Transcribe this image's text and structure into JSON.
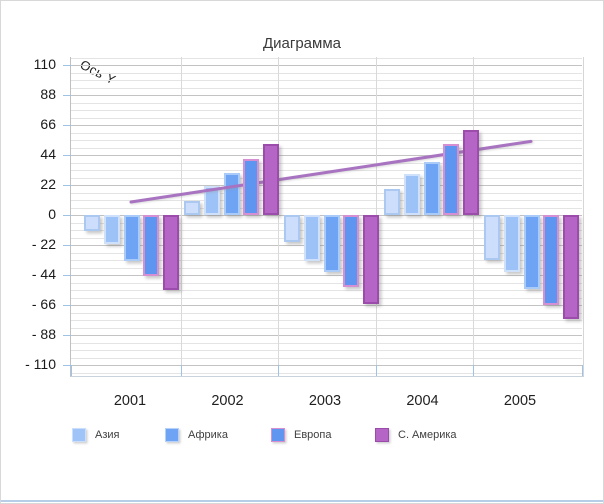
{
  "chart_data": {
    "type": "bar",
    "title": "Диаграмма",
    "y_axis_title": "Ось Y",
    "categories": [
      "2001",
      "2002",
      "2003",
      "2004",
      "2005"
    ],
    "y_major_unit": 22,
    "y_minor_unit": 5.5,
    "ylim": [
      -110,
      110
    ],
    "y_major_ticks": [
      110,
      88,
      66,
      44,
      22,
      0,
      -22,
      -44,
      -66,
      -88,
      -110
    ],
    "y_tick_labels": [
      "110",
      "88",
      "66",
      "44",
      "22",
      "0",
      "- 22",
      "- 44",
      "- 66",
      "- 88",
      "- 110"
    ],
    "grid": {
      "major_color": "#c3c3c3",
      "minor_color": "#e4e4e4",
      "vertical_color": "#d9d9d9",
      "tick_color": "#9dc3e6"
    },
    "bar_series": [
      {
        "name": "",
        "legend_visible": false,
        "fill": "#ccdefb",
        "border": "#abc8f1",
        "values": [
          -12,
          10,
          -20,
          19,
          -33
        ]
      },
      {
        "name": "Азия",
        "legend_visible": true,
        "fill": "#9cc2f7",
        "border": "#cfe0fb",
        "values": [
          -21,
          21,
          -34,
          30,
          -42
        ]
      },
      {
        "name": "Африка",
        "legend_visible": true,
        "fill": "#6fa3f4",
        "border": "#aacbf8",
        "values": [
          -34,
          31,
          -42,
          39,
          -54
        ]
      },
      {
        "name": "Европа",
        "legend_visible": true,
        "fill": "#5d95f1",
        "border": "#d78fd3",
        "values": [
          -45,
          41,
          -53,
          52,
          -66
        ]
      },
      {
        "name": "С. Америка",
        "legend_visible": true,
        "fill": "#b565c6",
        "border": "#9c4dac",
        "values": [
          -55,
          52,
          -65,
          62,
          -76
        ]
      }
    ],
    "line_series": {
      "color": "#a873c0",
      "values": [
        9.5,
        20.6,
        31.8,
        42.9,
        54
      ]
    },
    "legend": [
      {
        "label": "Азия",
        "fill": "#a0c4f7",
        "border": "#cadffb"
      },
      {
        "label": "Африка",
        "fill": "#6fa3f4",
        "border": "#b7d2fa"
      },
      {
        "label": "Европа",
        "fill": "#6096f0",
        "border": "#d78fd3"
      },
      {
        "label": "С. Америка",
        "fill": "#b565c6",
        "border": "#9a4caa"
      }
    ],
    "legend_position": "bottom"
  }
}
